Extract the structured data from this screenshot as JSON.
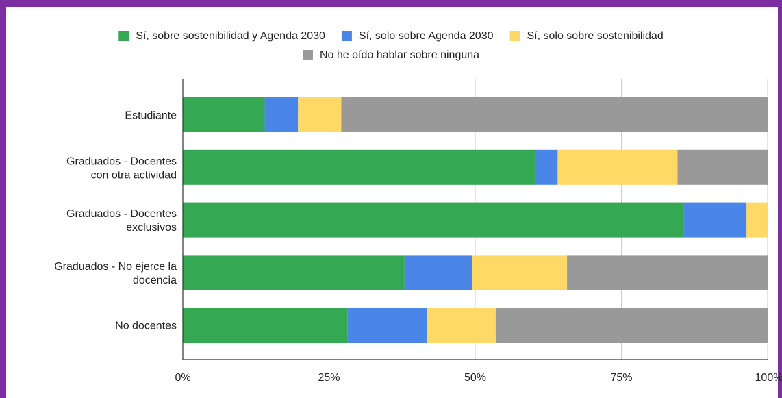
{
  "chart_data": {
    "type": "bar",
    "orientation": "horizontal",
    "stacked": "percent",
    "legend_position": "top",
    "grid": true,
    "xlim": [
      0,
      100
    ],
    "x_ticks": [
      "0%",
      "25%",
      "50%",
      "75%",
      "100%"
    ],
    "categories": [
      [
        "Estudiante"
      ],
      [
        "Graduados - Docentes",
        "con otra actividad"
      ],
      [
        "Graduados - Docentes",
        "exclusivos"
      ],
      [
        "Graduados - No ejerce la",
        "docencia"
      ],
      [
        "No docentes"
      ]
    ],
    "series": [
      {
        "name": "Sí, sobre sostenibilidad y Agenda 2030",
        "color": "#34a853",
        "values": [
          14,
          60.3,
          85.7,
          37.9,
          28.2
        ]
      },
      {
        "name": "Sí, solo sobre Agenda 2030",
        "color": "#4a86e8",
        "values": [
          5.7,
          3.8,
          10.7,
          11.6,
          13.6
        ]
      },
      {
        "name": "Sí, solo sobre sostenibilidad",
        "color": "#ffd966",
        "values": [
          7.4,
          20.5,
          3.6,
          16.2,
          11.7
        ]
      },
      {
        "name": "No he oído hablar sobre ninguna",
        "color": "#999999",
        "values": [
          72.9,
          15.4,
          0,
          34.3,
          46.5
        ]
      }
    ]
  }
}
